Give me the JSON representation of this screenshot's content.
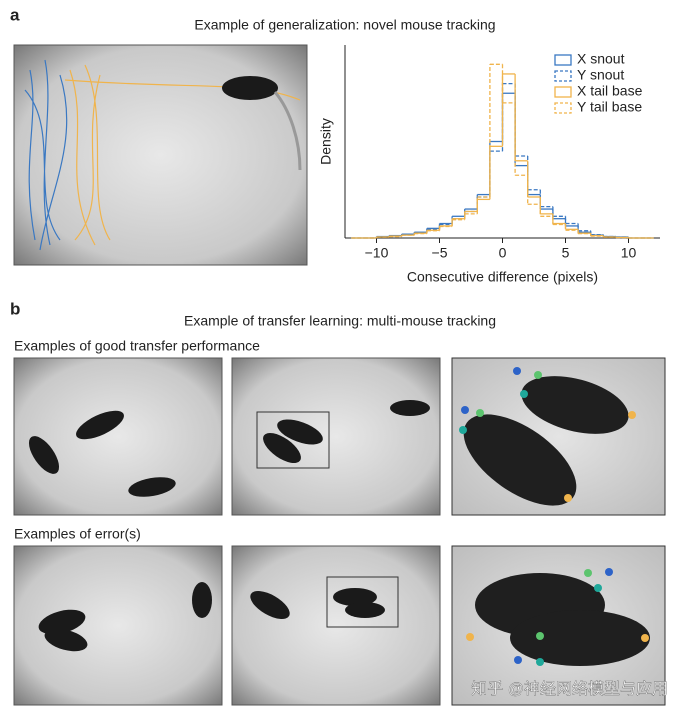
{
  "panel_a": {
    "label": "a",
    "title": "Example of generalization: novel mouse tracking"
  },
  "chart_data": {
    "type": "histogram",
    "ylabel": "Density",
    "xlabel": "Consecutive difference (pixels)",
    "bins": [
      -12,
      -11,
      -10,
      -9,
      -8,
      -7,
      -6,
      -5,
      -4,
      -3,
      -2,
      -1,
      0,
      1,
      2,
      3,
      4,
      5,
      6,
      7,
      8,
      9,
      10,
      11,
      12
    ],
    "series": [
      {
        "name": "X snout",
        "color": "#3a78c2",
        "linestyle": "solid",
        "values": [
          0,
          0,
          0.003,
          0.005,
          0.008,
          0.012,
          0.02,
          0.03,
          0.045,
          0.06,
          0.09,
          0.2,
          0.3,
          0.15,
          0.09,
          0.06,
          0.04,
          0.025,
          0.012,
          0.006,
          0.003,
          0.002,
          0,
          0
        ]
      },
      {
        "name": "Y snout",
        "color": "#3a78c2",
        "linestyle": "dashed",
        "values": [
          0,
          0,
          0.002,
          0.004,
          0.007,
          0.011,
          0.018,
          0.028,
          0.04,
          0.055,
          0.085,
          0.18,
          0.32,
          0.17,
          0.1,
          0.065,
          0.045,
          0.03,
          0.015,
          0.007,
          0.003,
          0.002,
          0,
          0
        ]
      },
      {
        "name": "X tail base",
        "color": "#f0b44c",
        "linestyle": "solid",
        "values": [
          0,
          0,
          0.002,
          0.004,
          0.006,
          0.01,
          0.016,
          0.025,
          0.04,
          0.055,
          0.08,
          0.19,
          0.34,
          0.16,
          0.085,
          0.05,
          0.03,
          0.018,
          0.01,
          0.005,
          0.002,
          0.001,
          0,
          0
        ]
      },
      {
        "name": "Y tail base",
        "color": "#f0b44c",
        "linestyle": "dashed",
        "values": [
          0,
          0,
          0.002,
          0.003,
          0.006,
          0.009,
          0.015,
          0.024,
          0.038,
          0.05,
          0.085,
          0.36,
          0.28,
          0.13,
          0.07,
          0.045,
          0.028,
          0.016,
          0.009,
          0.004,
          0.002,
          0.001,
          0,
          0
        ]
      }
    ],
    "xlim": [
      -12.5,
      12.5
    ],
    "ylim": [
      0,
      0.4
    ],
    "xticks": [
      {
        "value": -10,
        "label": "−10"
      },
      {
        "value": -5,
        "label": "−5"
      },
      0,
      5,
      10
    ],
    "legend": "upper right"
  },
  "panel_b": {
    "label": "b",
    "title": "Example of transfer learning: multi-mouse tracking",
    "good_caption": "Examples of good transfer performance",
    "error_caption": "Examples of error(s)"
  },
  "watermark": "知乎 @神经网络模型与应用"
}
